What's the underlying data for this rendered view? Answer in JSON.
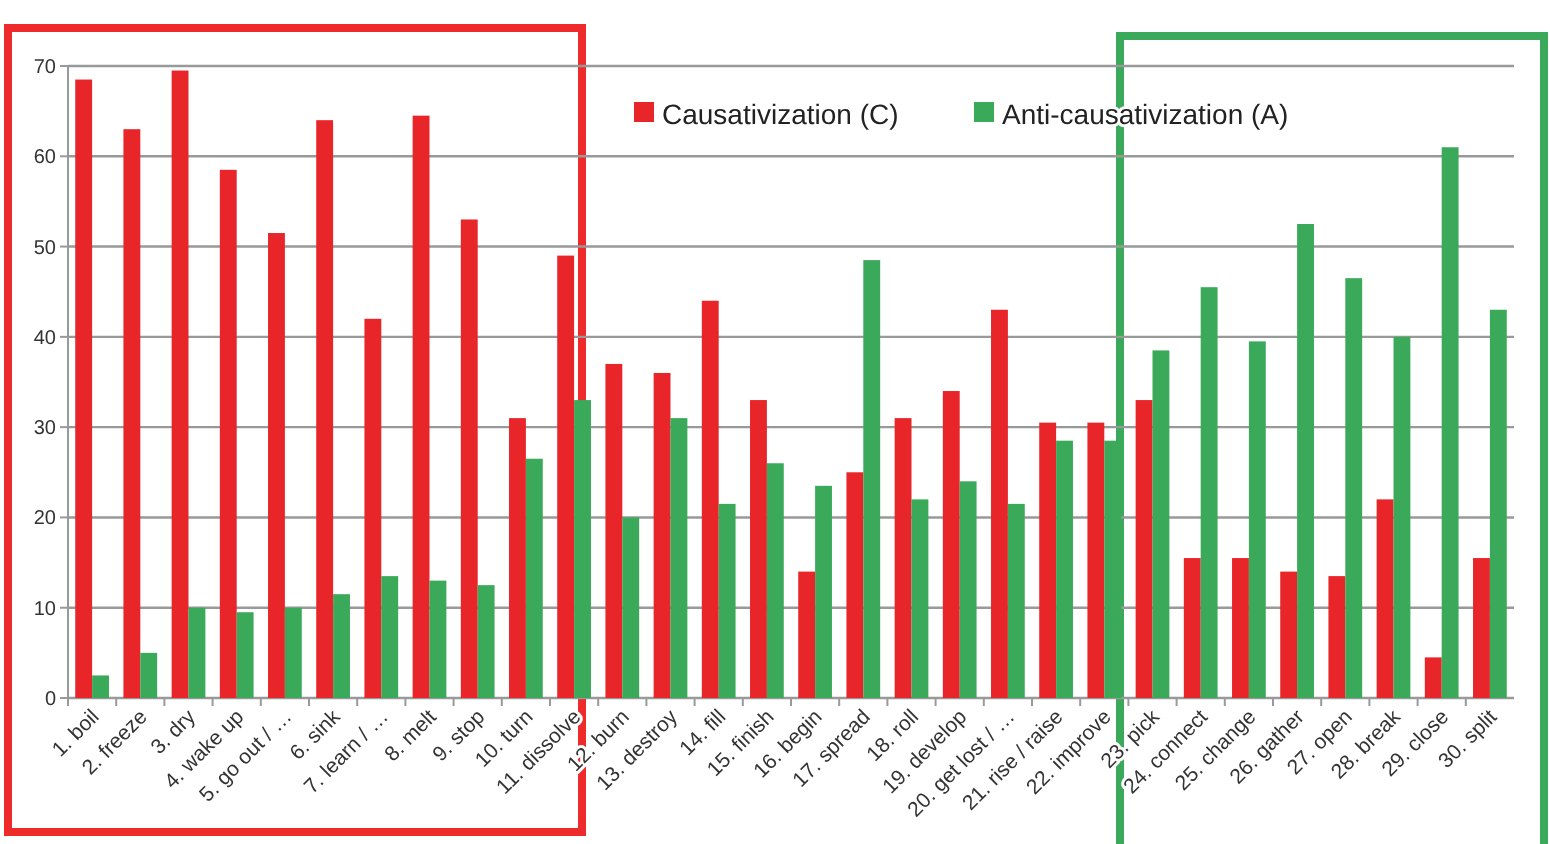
{
  "chart_data": {
    "type": "bar",
    "categories": [
      "1.  boil",
      "2.  freeze",
      "3.  dry",
      "4.  wake up",
      "5.  go out / …",
      "6.  sink",
      "7.  learn / …",
      "8.  melt",
      "9.  stop",
      "10.  turn",
      "11.  dissolve",
      "12.  burn",
      "13.  destroy",
      "14.  fill",
      "15.  finish",
      "16.  begin",
      "17.  spread",
      "18.  roll",
      "19.  develop",
      "20.  get lost / …",
      "21.  rise / raise",
      "22.  improve",
      "23.  pick",
      "24.  connect",
      "25.  change",
      "26.  gather",
      "27.  open",
      "28.  break",
      "29.  close",
      "30.  split"
    ],
    "series": [
      {
        "name": "Causativization (C)",
        "color": "#e8262a",
        "values": [
          68.5,
          63,
          69.5,
          58.5,
          51.5,
          64,
          42,
          64.5,
          53,
          31,
          49,
          37,
          36,
          44,
          33,
          14,
          25,
          31,
          34,
          43,
          30.5,
          30.5,
          33,
          15.5,
          15.5,
          14,
          13.5,
          22,
          4.5,
          15.5
        ]
      },
      {
        "name": "Anti-causativization (A)",
        "color": "#3aaa5a",
        "values": [
          2.5,
          5,
          10,
          9.5,
          10,
          11.5,
          13.5,
          13,
          12.5,
          26.5,
          33,
          20,
          31,
          21.5,
          26,
          23.5,
          48.5,
          22,
          24,
          21.5,
          28.5,
          28.5,
          38.5,
          45.5,
          39.5,
          52.5,
          46.5,
          40,
          61,
          43
        ]
      }
    ],
    "ylim": [
      0,
      70
    ],
    "yticks": [
      0,
      10,
      20,
      30,
      40,
      50,
      60,
      70
    ],
    "grid": "y",
    "legend": "top right"
  }
}
